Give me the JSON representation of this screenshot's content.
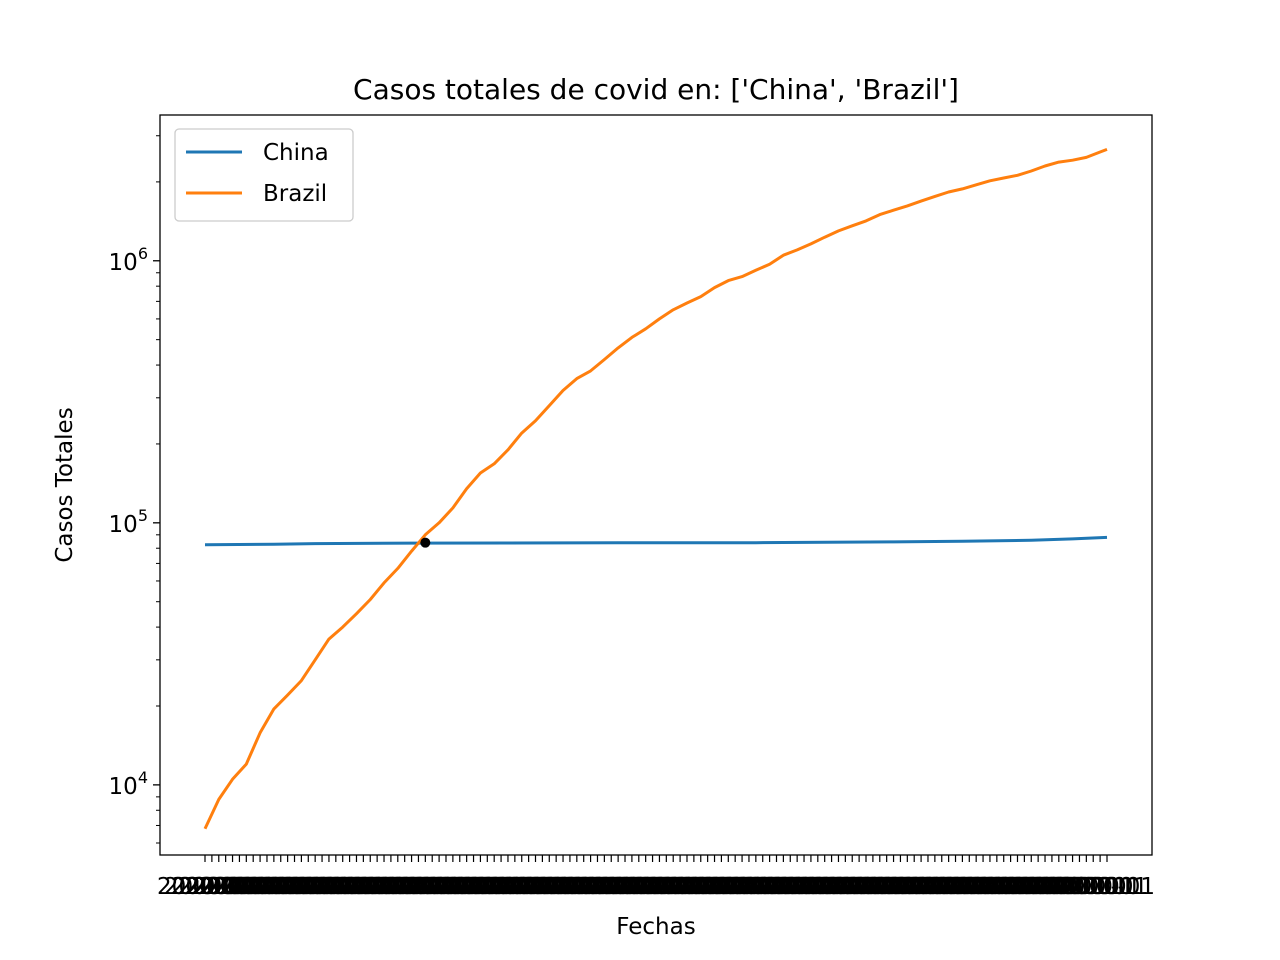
{
  "chart_data": {
    "type": "line",
    "title": "Casos totales de covid en: ['China', 'Brazil']",
    "xlabel": "Fechas",
    "ylabel": "Casos Totales",
    "yscale": "log",
    "ylim": [
      5400,
      3600000
    ],
    "y_ticks": [
      {
        "value": 10000,
        "base": "10",
        "exp": "4"
      },
      {
        "value": 100000,
        "base": "10",
        "exp": "5"
      },
      {
        "value": 1000000,
        "base": "10",
        "exp": "6"
      }
    ],
    "x_count": 132,
    "x_tick_labels_overlapping": true,
    "legend": {
      "placement": "upper-left",
      "entries": [
        "China",
        "Brazil"
      ]
    },
    "grid": false,
    "series": [
      {
        "name": "China",
        "color": "#1f77b4",
        "values": [
          {
            "i": 0,
            "v": 82500
          },
          {
            "i": 10,
            "v": 82900
          },
          {
            "i": 16,
            "v": 83300
          },
          {
            "i": 30,
            "v": 83700
          },
          {
            "i": 60,
            "v": 83900
          },
          {
            "i": 80,
            "v": 84000
          },
          {
            "i": 100,
            "v": 84600
          },
          {
            "i": 110,
            "v": 85000
          },
          {
            "i": 120,
            "v": 85800
          },
          {
            "i": 126,
            "v": 86800
          },
          {
            "i": 131,
            "v": 88000
          }
        ]
      },
      {
        "name": "Brazil",
        "color": "#ff7f0e",
        "values": [
          {
            "i": 0,
            "v": 6800
          },
          {
            "i": 2,
            "v": 8800
          },
          {
            "i": 4,
            "v": 10500
          },
          {
            "i": 6,
            "v": 12000
          },
          {
            "i": 8,
            "v": 15800
          },
          {
            "i": 10,
            "v": 19500
          },
          {
            "i": 12,
            "v": 22000
          },
          {
            "i": 14,
            "v": 25000
          },
          {
            "i": 16,
            "v": 30000
          },
          {
            "i": 18,
            "v": 36000
          },
          {
            "i": 20,
            "v": 40000
          },
          {
            "i": 22,
            "v": 45000
          },
          {
            "i": 24,
            "v": 51000
          },
          {
            "i": 26,
            "v": 59000
          },
          {
            "i": 28,
            "v": 67000
          },
          {
            "i": 30,
            "v": 78000
          },
          {
            "i": 32,
            "v": 90000
          },
          {
            "i": 34,
            "v": 100000
          },
          {
            "i": 36,
            "v": 114000
          },
          {
            "i": 38,
            "v": 135000
          },
          {
            "i": 40,
            "v": 155000
          },
          {
            "i": 42,
            "v": 168000
          },
          {
            "i": 44,
            "v": 190000
          },
          {
            "i": 46,
            "v": 220000
          },
          {
            "i": 48,
            "v": 245000
          },
          {
            "i": 50,
            "v": 280000
          },
          {
            "i": 52,
            "v": 320000
          },
          {
            "i": 54,
            "v": 355000
          },
          {
            "i": 56,
            "v": 380000
          },
          {
            "i": 58,
            "v": 420000
          },
          {
            "i": 60,
            "v": 465000
          },
          {
            "i": 62,
            "v": 510000
          },
          {
            "i": 64,
            "v": 550000
          },
          {
            "i": 66,
            "v": 600000
          },
          {
            "i": 68,
            "v": 650000
          },
          {
            "i": 70,
            "v": 690000
          },
          {
            "i": 72,
            "v": 730000
          },
          {
            "i": 74,
            "v": 790000
          },
          {
            "i": 76,
            "v": 840000
          },
          {
            "i": 78,
            "v": 870000
          },
          {
            "i": 80,
            "v": 920000
          },
          {
            "i": 82,
            "v": 970000
          },
          {
            "i": 84,
            "v": 1050000
          },
          {
            "i": 86,
            "v": 1100000
          },
          {
            "i": 88,
            "v": 1160000
          },
          {
            "i": 90,
            "v": 1230000
          },
          {
            "i": 92,
            "v": 1300000
          },
          {
            "i": 94,
            "v": 1360000
          },
          {
            "i": 96,
            "v": 1420000
          },
          {
            "i": 98,
            "v": 1500000
          },
          {
            "i": 100,
            "v": 1560000
          },
          {
            "i": 102,
            "v": 1620000
          },
          {
            "i": 104,
            "v": 1690000
          },
          {
            "i": 106,
            "v": 1760000
          },
          {
            "i": 108,
            "v": 1830000
          },
          {
            "i": 110,
            "v": 1880000
          },
          {
            "i": 112,
            "v": 1950000
          },
          {
            "i": 114,
            "v": 2020000
          },
          {
            "i": 116,
            "v": 2070000
          },
          {
            "i": 118,
            "v": 2120000
          },
          {
            "i": 120,
            "v": 2200000
          },
          {
            "i": 122,
            "v": 2300000
          },
          {
            "i": 124,
            "v": 2380000
          },
          {
            "i": 126,
            "v": 2420000
          },
          {
            "i": 128,
            "v": 2480000
          },
          {
            "i": 130,
            "v": 2600000
          },
          {
            "i": 131,
            "v": 2660000
          }
        ]
      }
    ],
    "annotations": [
      {
        "type": "point",
        "i": 32,
        "v": 84000,
        "color": "#000000"
      }
    ]
  }
}
